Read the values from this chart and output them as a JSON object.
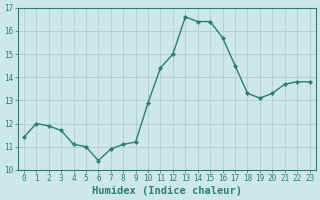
{
  "xlabel": "Humidex (Indice chaleur)",
  "ylabel": "",
  "x_values": [
    0,
    1,
    2,
    3,
    4,
    5,
    6,
    7,
    8,
    9,
    10,
    11,
    12,
    13,
    14,
    15,
    16,
    17,
    18,
    19,
    20,
    21,
    22,
    23
  ],
  "y_values": [
    11.4,
    12.0,
    11.9,
    11.7,
    11.1,
    11.0,
    10.4,
    10.9,
    11.1,
    11.2,
    12.9,
    14.4,
    15.0,
    16.6,
    16.4,
    16.4,
    15.7,
    14.5,
    13.3,
    13.1,
    13.3,
    13.7,
    13.8,
    13.8
  ],
  "line_color": "#2e7d6e",
  "marker": "D",
  "marker_size": 2.0,
  "line_width": 1.0,
  "bg_color": "#cde8e8",
  "grid_color": "#b0cccc",
  "ylim": [
    10,
    17
  ],
  "yticks": [
    10,
    11,
    12,
    13,
    14,
    15,
    16,
    17
  ],
  "xticks": [
    0,
    1,
    2,
    3,
    4,
    5,
    6,
    7,
    8,
    9,
    10,
    11,
    12,
    13,
    14,
    15,
    16,
    17,
    18,
    19,
    20,
    21,
    22,
    23
  ],
  "tick_fontsize": 5.5,
  "xlabel_fontsize": 7.5,
  "spine_color": "#2e7d6e"
}
